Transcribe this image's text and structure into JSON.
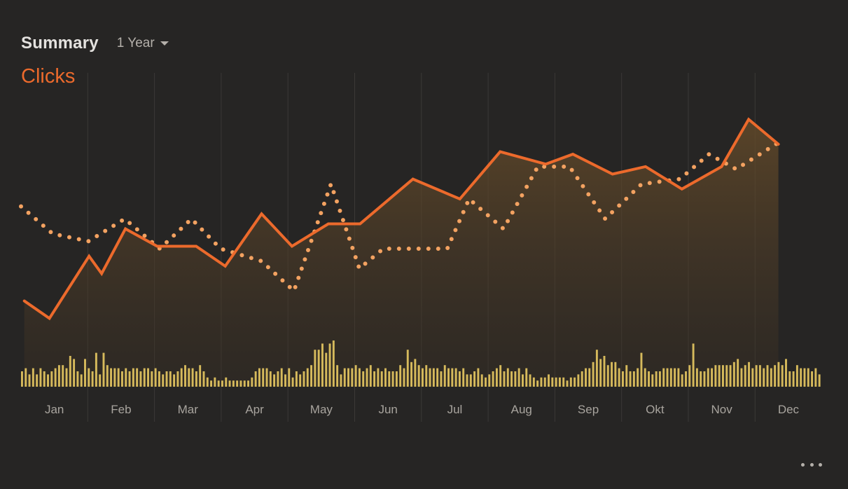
{
  "header": {
    "title": "Summary",
    "range": "1 Year"
  },
  "metric": {
    "label": "Clicks"
  },
  "colors": {
    "line": "#ec6a2c",
    "dotted": "#f3a261",
    "bars": "#d6ba5c",
    "grid": "#3b3937",
    "tick_text": "#a8a49e"
  },
  "icons": {
    "range_caret": "caret-down-icon",
    "more": "more-horizontal-icon"
  },
  "chart_data": {
    "type": "line",
    "categories": [
      "Jan",
      "Feb",
      "Mar",
      "Apr",
      "May",
      "Jun",
      "Jul",
      "Aug",
      "Sep",
      "Okt",
      "Nov",
      "Dec"
    ],
    "x_range": [
      0.5,
      12.6
    ],
    "y_range": [
      0,
      100
    ],
    "grid": "vertical",
    "series": [
      {
        "style": "solid-line-with-area",
        "x": [
          0.55,
          0.93,
          1.53,
          1.72,
          2.08,
          2.56,
          3.15,
          3.59,
          4.14,
          4.6,
          5.15,
          5.63,
          6.43,
          7.14,
          7.75,
          8.44,
          8.85,
          9.45,
          9.95,
          10.5,
          11.1,
          11.51,
          11.96
        ],
        "y": [
          19,
          12,
          37,
          30,
          48,
          41,
          41,
          33,
          54,
          41,
          50,
          50,
          68,
          60,
          79,
          74,
          78,
          70,
          73,
          64,
          73,
          92,
          82
        ]
      },
      {
        "style": "dotted-line",
        "x": [
          0.5,
          0.98,
          1.52,
          2.07,
          2.6,
          3.08,
          3.52,
          4.14,
          4.63,
          5.19,
          5.62,
          5.98,
          6.5,
          6.95,
          7.28,
          7.8,
          8.32,
          8.8,
          9.34,
          9.89,
          10.47,
          10.91,
          11.32,
          11.98
        ],
        "y": [
          57,
          46,
          43,
          52,
          40,
          52,
          40,
          35,
          23,
          66,
          32,
          40,
          40,
          40,
          60,
          48,
          73,
          73,
          52,
          66,
          68,
          78,
          72,
          83
        ]
      }
    ],
    "bars": {
      "y_range": [
        0,
        100
      ],
      "values": [
        5,
        6,
        4,
        6,
        4,
        6,
        5,
        4,
        5,
        6,
        7,
        7,
        6,
        10,
        9,
        5,
        4,
        9,
        6,
        5,
        11,
        4,
        11,
        7,
        6,
        6,
        6,
        5,
        6,
        5,
        6,
        6,
        5,
        6,
        6,
        5,
        6,
        5,
        4,
        5,
        5,
        4,
        5,
        6,
        7,
        6,
        6,
        5,
        7,
        5,
        3,
        2,
        3,
        2,
        2,
        3,
        2,
        2,
        2,
        2,
        2,
        2,
        3,
        5,
        6,
        6,
        6,
        5,
        4,
        5,
        6,
        4,
        6,
        3,
        5,
        4,
        5,
        6,
        7,
        12,
        12,
        14,
        11,
        14,
        15,
        7,
        4,
        6,
        6,
        6,
        7,
        6,
        5,
        6,
        7,
        5,
        6,
        5,
        6,
        5,
        5,
        5,
        7,
        6,
        12,
        8,
        9,
        7,
        6,
        7,
        6,
        6,
        6,
        5,
        7,
        6,
        6,
        6,
        5,
        6,
        4,
        4,
        5,
        6,
        4,
        3,
        4,
        5,
        6,
        7,
        5,
        6,
        5,
        5,
        6,
        4,
        6,
        4,
        3,
        2,
        3,
        3,
        4,
        3,
        3,
        3,
        3,
        2,
        3,
        3,
        4,
        5,
        6,
        6,
        8,
        12,
        9,
        10,
        7,
        8,
        8,
        6,
        5,
        7,
        5,
        5,
        6,
        11,
        6,
        5,
        4,
        5,
        5,
        6,
        6,
        6,
        6,
        6,
        4,
        5,
        7,
        14,
        6,
        5,
        5,
        6,
        6,
        7,
        7,
        7,
        7,
        7,
        8,
        9,
        6,
        7,
        8,
        6,
        7,
        7,
        6,
        7,
        6,
        7,
        8,
        7,
        9,
        5,
        5,
        7,
        6,
        6,
        6,
        5,
        6,
        4
      ]
    }
  }
}
